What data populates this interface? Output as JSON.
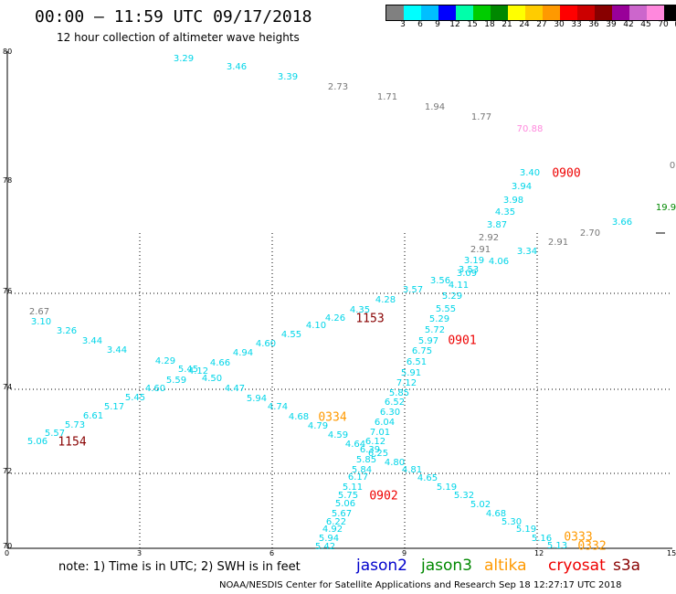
{
  "header": {
    "title": "00:00 – 11:59 UTC 09/17/2018",
    "subtitle": "12 hour collection of altimeter wave heights"
  },
  "legend": {
    "colors": [
      "#808080",
      "#00ffff",
      "#00bfff",
      "#0000ff",
      "#00ffaa",
      "#00cc00",
      "#008800",
      "#ffff00",
      "#ffcc00",
      "#ff9900",
      "#ff0000",
      "#cc0000",
      "#880000",
      "#990099",
      "#cc66cc",
      "#ff88dd",
      "#000000"
    ],
    "labels": [
      "3",
      "6",
      "9",
      "12",
      "15",
      "18",
      "21",
      "24",
      "27",
      "30",
      "33",
      "36",
      "39",
      "42",
      "45",
      "70",
      "(ft)"
    ]
  },
  "axes": {
    "lat_labels": [
      "80",
      "78",
      "76",
      "74",
      "72",
      "70"
    ],
    "lon_labels": [
      "0",
      "3",
      "6",
      "9",
      "12",
      "15"
    ]
  },
  "colors": {
    "grey": "#777777",
    "cyan": "#00d5e8",
    "pink": "#ff88dd",
    "green": "#008800",
    "red": "#ee0000",
    "darkred": "#880000",
    "orange": "#ff9900",
    "blue": "#0000cc"
  },
  "observations": [
    {
      "v": "3.29",
      "c": "cyan"
    },
    {
      "v": "3.46",
      "c": "cyan"
    },
    {
      "v": "3.39",
      "c": "cyan"
    },
    {
      "v": "2.73",
      "c": "grey"
    },
    {
      "v": "1.71",
      "c": "grey"
    },
    {
      "v": "1.94",
      "c": "grey"
    },
    {
      "v": "1.77",
      "c": "grey"
    },
    {
      "v": "70.88",
      "c": "pink"
    },
    {
      "v": "3.40",
      "c": "cyan"
    },
    {
      "v": "3.94",
      "c": "cyan"
    },
    {
      "v": "3.98",
      "c": "cyan"
    },
    {
      "v": "4.35",
      "c": "cyan"
    },
    {
      "v": "3.87",
      "c": "cyan"
    },
    {
      "v": "2.92",
      "c": "grey"
    },
    {
      "v": "2.91",
      "c": "grey"
    },
    {
      "v": "3.34",
      "c": "cyan"
    },
    {
      "v": "2.91",
      "c": "grey"
    },
    {
      "v": "2.70",
      "c": "grey"
    },
    {
      "v": "3.66",
      "c": "cyan"
    },
    {
      "v": "19.9",
      "c": "green"
    },
    {
      "v": "0",
      "c": "grey"
    },
    {
      "v": "3.19",
      "c": "cyan"
    },
    {
      "v": "4.06",
      "c": "cyan"
    },
    {
      "v": "3.53",
      "c": "cyan"
    },
    {
      "v": "3.09",
      "c": "cyan"
    },
    {
      "v": "3.56",
      "c": "cyan"
    },
    {
      "v": "4.11",
      "c": "cyan"
    },
    {
      "v": "3.57",
      "c": "cyan"
    },
    {
      "v": "5.29",
      "c": "cyan"
    },
    {
      "v": "4.28",
      "c": "cyan"
    },
    {
      "v": "4.35",
      "c": "cyan"
    },
    {
      "v": "5.55",
      "c": "cyan"
    },
    {
      "v": "5.29",
      "c": "cyan"
    },
    {
      "v": "5.72",
      "c": "cyan"
    },
    {
      "v": "5.97",
      "c": "cyan"
    },
    {
      "v": "6.75",
      "c": "cyan"
    },
    {
      "v": "6.51",
      "c": "cyan"
    },
    {
      "v": "5.91",
      "c": "cyan"
    },
    {
      "v": "7.12",
      "c": "cyan"
    },
    {
      "v": "5.85",
      "c": "cyan"
    },
    {
      "v": "6.52",
      "c": "cyan"
    },
    {
      "v": "6.30",
      "c": "cyan"
    },
    {
      "v": "6.04",
      "c": "cyan"
    },
    {
      "v": "7.01",
      "c": "cyan"
    },
    {
      "v": "6.12",
      "c": "cyan"
    },
    {
      "v": "6.39",
      "c": "cyan"
    },
    {
      "v": "6.25",
      "c": "cyan"
    },
    {
      "v": "4.80",
      "c": "cyan"
    },
    {
      "v": "4.81",
      "c": "cyan"
    },
    {
      "v": "4.65",
      "c": "cyan"
    },
    {
      "v": "5.19",
      "c": "cyan"
    },
    {
      "v": "5.32",
      "c": "cyan"
    },
    {
      "v": "5.02",
      "c": "cyan"
    },
    {
      "v": "4.68",
      "c": "cyan"
    },
    {
      "v": "5.30",
      "c": "cyan"
    },
    {
      "v": "5.19",
      "c": "cyan"
    },
    {
      "v": "5.16",
      "c": "cyan"
    },
    {
      "v": "5.13",
      "c": "cyan"
    },
    {
      "v": "2.67",
      "c": "grey"
    },
    {
      "v": "3.10",
      "c": "cyan"
    },
    {
      "v": "3.26",
      "c": "cyan"
    },
    {
      "v": "3.44",
      "c": "cyan"
    },
    {
      "v": "3.44",
      "c": "cyan"
    },
    {
      "v": "4.29",
      "c": "cyan"
    },
    {
      "v": "5.45",
      "c": "cyan"
    },
    {
      "v": "4.12",
      "c": "cyan"
    },
    {
      "v": "4.66",
      "c": "cyan"
    },
    {
      "v": "4.94",
      "c": "cyan"
    },
    {
      "v": "4.60",
      "c": "cyan"
    },
    {
      "v": "4.55",
      "c": "cyan"
    },
    {
      "v": "4.10",
      "c": "cyan"
    },
    {
      "v": "4.26",
      "c": "cyan"
    },
    {
      "v": "5.59",
      "c": "cyan"
    },
    {
      "v": "4.50",
      "c": "cyan"
    },
    {
      "v": "4.60",
      "c": "cyan"
    },
    {
      "v": "5.45",
      "c": "cyan"
    },
    {
      "v": "5.17",
      "c": "cyan"
    },
    {
      "v": "6.61",
      "c": "cyan"
    },
    {
      "v": "5.73",
      "c": "cyan"
    },
    {
      "v": "5.57",
      "c": "cyan"
    },
    {
      "v": "5.06",
      "c": "cyan"
    },
    {
      "v": "4.47",
      "c": "cyan"
    },
    {
      "v": "5.94",
      "c": "cyan"
    },
    {
      "v": "4.74",
      "c": "cyan"
    },
    {
      "v": "4.68",
      "c": "cyan"
    },
    {
      "v": "4.79",
      "c": "cyan"
    },
    {
      "v": "4.59",
      "c": "cyan"
    },
    {
      "v": "4.64",
      "c": "cyan"
    },
    {
      "v": "5.85",
      "c": "cyan"
    },
    {
      "v": "5.84",
      "c": "cyan"
    },
    {
      "v": "6.17",
      "c": "cyan"
    },
    {
      "v": "5.11",
      "c": "cyan"
    },
    {
      "v": "5.75",
      "c": "cyan"
    },
    {
      "v": "5.06",
      "c": "cyan"
    },
    {
      "v": "5.67",
      "c": "cyan"
    },
    {
      "v": "6.22",
      "c": "cyan"
    },
    {
      "v": "4.92",
      "c": "cyan"
    },
    {
      "v": "5.94",
      "c": "cyan"
    },
    {
      "v": "5.42",
      "c": "cyan"
    }
  ],
  "times": [
    {
      "v": "0900",
      "c": "red"
    },
    {
      "v": "0901",
      "c": "red"
    },
    {
      "v": "1153",
      "c": "darkred"
    },
    {
      "v": "1154",
      "c": "darkred"
    },
    {
      "v": "0334",
      "c": "orange"
    },
    {
      "v": "0902",
      "c": "red"
    },
    {
      "v": "0333",
      "c": "orange"
    },
    {
      "v": "0332",
      "c": "orange"
    }
  ],
  "note": "note:  1) Time is in UTC;  2) SWH is in feet",
  "satellites": [
    {
      "name": "jason2",
      "c": "blue"
    },
    {
      "name": "jason3",
      "c": "green"
    },
    {
      "name": "altika",
      "c": "orange"
    },
    {
      "name": "cryosat",
      "c": "red"
    },
    {
      "name": "s3a",
      "c": "darkred"
    }
  ],
  "footer": "NOAA/NESDIS Center for Satellite Applications and Research    Sep 18 12:27:17 UTC 2018"
}
